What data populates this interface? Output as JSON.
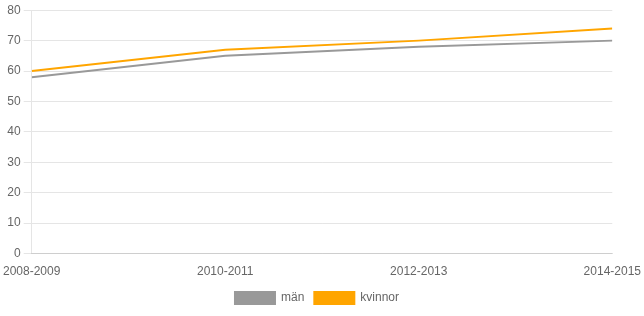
{
  "chart_data": {
    "type": "line",
    "categories": [
      "2008-2009",
      "2010-2011",
      "2012-2013",
      "2014-2015"
    ],
    "series": [
      {
        "name": "män",
        "color": "#999999",
        "values": [
          58,
          65,
          68,
          70
        ]
      },
      {
        "name": "kvinnor",
        "color": "#FFA500",
        "values": [
          60,
          67,
          70,
          74
        ]
      }
    ],
    "ylim": [
      0,
      80
    ],
    "yticks": [
      0,
      10,
      20,
      30,
      40,
      50,
      60,
      70,
      80
    ],
    "grid": true,
    "legend": "bottom"
  }
}
